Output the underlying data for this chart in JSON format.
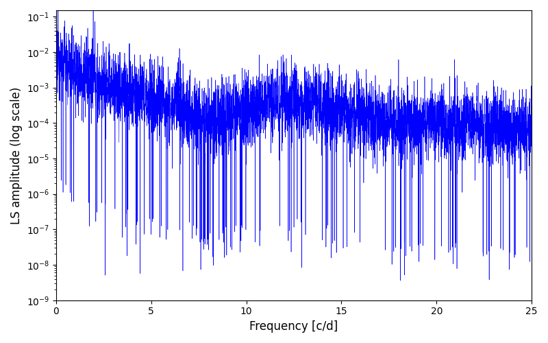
{
  "title": "",
  "xlabel": "Frequency [c/d]",
  "ylabel": "LS amplitude (log scale)",
  "line_color": "#0000ff",
  "xlim": [
    0,
    25
  ],
  "ylim": [
    1e-09,
    0.15
  ],
  "n_points": 5000,
  "freq_max": 25.0,
  "background_color": "#ffffff",
  "figsize": [
    8.0,
    5.0
  ],
  "dpi": 100,
  "seed": 12345
}
